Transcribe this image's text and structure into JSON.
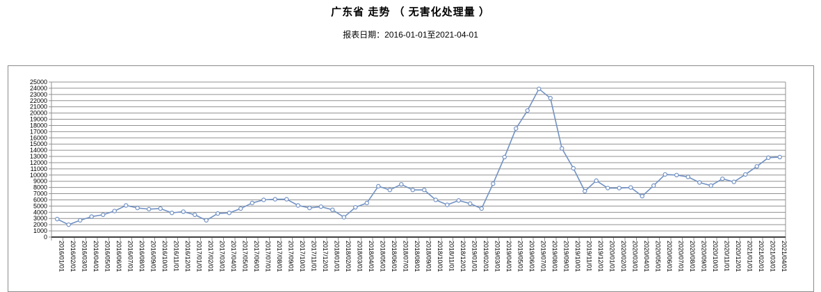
{
  "title": "广东省 走势 （ 无害化处理量 ）",
  "subtitle": "报表日期：2016-01-01至2021-04-01",
  "chart_data": {
    "type": "line",
    "series_name": "无害化处理量",
    "title": "广东省 走势 （ 无害化处理量 ）",
    "subtitle": "报表日期：2016-01-01至2021-04-01",
    "xlabel": "",
    "ylabel": "",
    "ylim": [
      0,
      25000
    ],
    "y_step": 1000,
    "grid": true,
    "legend_position": "none",
    "line_color": "#7191C4",
    "marker": "hollow-circle",
    "marker_fill": "#ffffff",
    "gridline_color": "#909090",
    "axis_color": "#404040",
    "frame_color": "#8a8a8a",
    "categories": [
      "2016/01/01",
      "2016/02/01",
      "2016/03/01",
      "2016/04/01",
      "2016/05/01",
      "2016/06/01",
      "2016/07/01",
      "2016/08/01",
      "2016/09/01",
      "2016/10/01",
      "2016/11/01",
      "2016/12/01",
      "2017/01/01",
      "2017/02/01",
      "2017/03/01",
      "2017/04/01",
      "2017/05/01",
      "2017/06/01",
      "2017/07/01",
      "2017/08/01",
      "2017/09/01",
      "2017/10/01",
      "2017/11/01",
      "2017/12/01",
      "2018/01/01",
      "2018/02/01",
      "2018/03/01",
      "2018/04/01",
      "2018/05/01",
      "2018/06/01",
      "2018/07/01",
      "2018/08/01",
      "2018/09/01",
      "2018/10/01",
      "2018/11/01",
      "2018/12/01",
      "2019/01/01",
      "2019/02/01",
      "2019/03/01",
      "2019/04/01",
      "2019/05/01",
      "2019/06/01",
      "2019/07/01",
      "2019/08/01",
      "2019/09/01",
      "2019/10/01",
      "2019/11/01",
      "2019/12/01",
      "2020/01/01",
      "2020/02/01",
      "2020/03/01",
      "2020/04/01",
      "2020/05/01",
      "2020/06/01",
      "2020/07/01",
      "2020/08/01",
      "2020/09/01",
      "2020/10/01",
      "2020/11/01",
      "2020/12/01",
      "2021/01/01",
      "2021/02/01",
      "2021/03/01",
      "2021/04/01"
    ],
    "values": [
      2900,
      2000,
      2700,
      3300,
      3600,
      4200,
      5100,
      4700,
      4500,
      4600,
      3900,
      4100,
      3600,
      2700,
      3800,
      3900,
      4600,
      5500,
      6000,
      6100,
      6100,
      5100,
      4700,
      4900,
      4400,
      3200,
      4800,
      5500,
      8200,
      7600,
      8500,
      7600,
      7600,
      6000,
      5200,
      5900,
      5400,
      4600,
      8600,
      12900,
      17500,
      20400,
      23900,
      22400,
      14300,
      11100,
      7400,
      9100,
      7900,
      7900,
      8000,
      6600,
      8300,
      10100,
      10000,
      9700,
      8800,
      8300,
      9400,
      8900,
      10100,
      11400,
      12800,
      12900
    ]
  }
}
